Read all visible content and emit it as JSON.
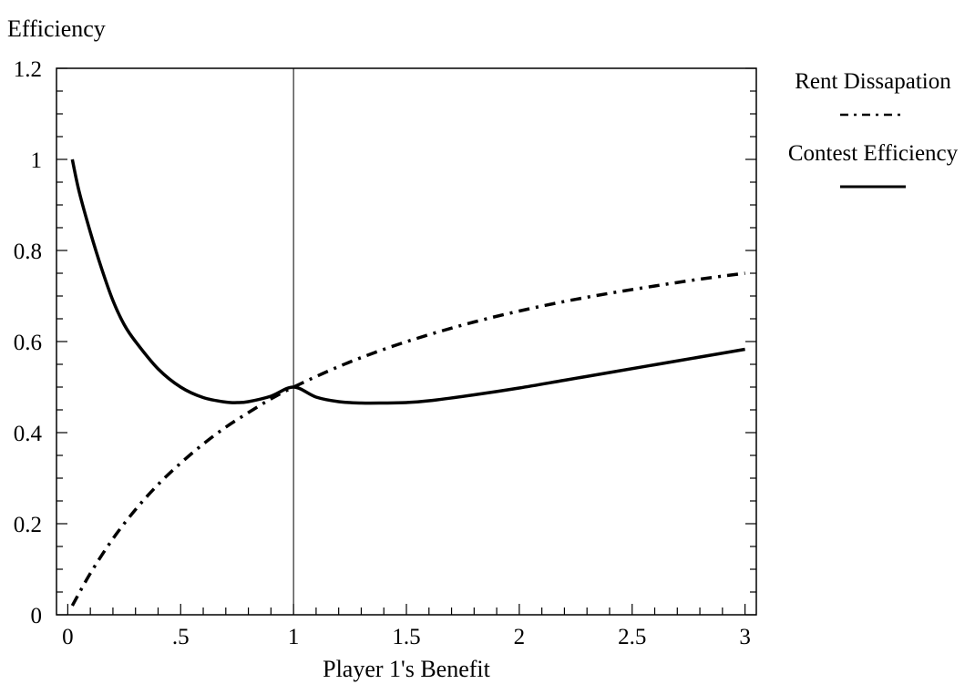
{
  "chart_data": {
    "type": "line",
    "title": "",
    "ylabel": "Efficiency",
    "xlabel": "Player 1's Benefit",
    "xlim": [
      -0.05,
      3.05
    ],
    "ylim": [
      0,
      1.2
    ],
    "x_ticks": [
      {
        "value": 0,
        "label": "0"
      },
      {
        "value": 0.5,
        "label": ".5"
      },
      {
        "value": 1,
        "label": "1"
      },
      {
        "value": 1.5,
        "label": "1.5"
      },
      {
        "value": 2,
        "label": "2"
      },
      {
        "value": 2.5,
        "label": "2.5"
      },
      {
        "value": 3,
        "label": "3"
      }
    ],
    "y_ticks": [
      {
        "value": 0,
        "label": "0"
      },
      {
        "value": 0.2,
        "label": "0.2"
      },
      {
        "value": 0.4,
        "label": "0.4"
      },
      {
        "value": 0.6,
        "label": "0.6"
      },
      {
        "value": 0.8,
        "label": "0.8"
      },
      {
        "value": 1,
        "label": "1"
      },
      {
        "value": 1.2,
        "label": "1.2"
      }
    ],
    "reference_line": {
      "x": 1
    },
    "grid": false,
    "legend_position": "right",
    "series": [
      {
        "name": "Rent Dissapation",
        "style": "dash-dot",
        "x": [
          0.02,
          0.1,
          0.2,
          0.3,
          0.4,
          0.5,
          0.6,
          0.7,
          0.8,
          0.9,
          1.0,
          1.2,
          1.4,
          1.6,
          1.8,
          2.0,
          2.2,
          2.4,
          2.6,
          2.8,
          3.0
        ],
        "y": [
          0.02,
          0.091,
          0.167,
          0.231,
          0.286,
          0.333,
          0.375,
          0.412,
          0.444,
          0.474,
          0.5,
          0.545,
          0.583,
          0.615,
          0.643,
          0.667,
          0.688,
          0.706,
          0.722,
          0.737,
          0.75
        ]
      },
      {
        "name": "Contest Efficiency",
        "style": "solid",
        "x": [
          0.02,
          0.05,
          0.1,
          0.15,
          0.2,
          0.25,
          0.3,
          0.4,
          0.5,
          0.6,
          0.7,
          0.75,
          0.8,
          0.9,
          1.0,
          1.1,
          1.2,
          1.3,
          1.4,
          1.5,
          1.6,
          1.8,
          2.0,
          2.2,
          2.4,
          2.6,
          2.8,
          3.0
        ],
        "y": [
          1.0,
          0.93,
          0.84,
          0.76,
          0.69,
          0.637,
          0.6,
          0.54,
          0.5,
          0.477,
          0.467,
          0.466,
          0.468,
          0.48,
          0.5,
          0.478,
          0.468,
          0.465,
          0.465,
          0.466,
          0.47,
          0.483,
          0.498,
          0.515,
          0.532,
          0.549,
          0.566,
          0.583
        ]
      }
    ]
  }
}
